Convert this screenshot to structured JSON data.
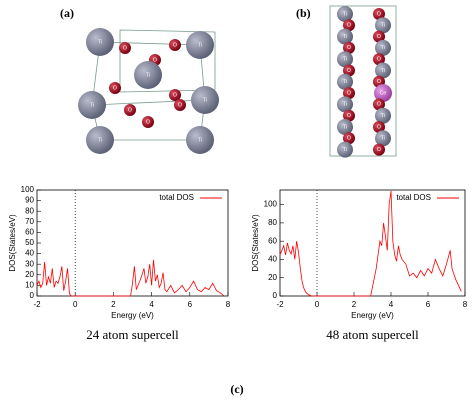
{
  "panels": [
    {
      "label": "(a)",
      "atoms": [
        "Ti",
        "O",
        "O",
        "Ti",
        "O",
        "Ti",
        "O",
        "O",
        "Ti",
        "O",
        "O",
        "Ti",
        "Ti",
        "O",
        "Ti"
      ]
    },
    {
      "label": "(b)",
      "atoms": [
        "Ti",
        "O",
        "O",
        "Ti",
        "Ti",
        "O",
        "O",
        "Ti",
        "Ti",
        "O",
        "O",
        "Ti",
        "Ti",
        "O",
        "O",
        "Ce",
        "Ti",
        "O",
        "O",
        "Ti",
        "Ti",
        "O",
        "O",
        "Ti",
        "Ti",
        "O"
      ]
    }
  ],
  "figure_label": "(c)",
  "chart_data": [
    {
      "type": "line",
      "caption": "24 atom supercell",
      "xlabel": "Energy (eV)",
      "ylabel": "DOS(States/eV)",
      "xlim": [
        -2,
        8
      ],
      "ylim": [
        0,
        100
      ],
      "xticks": [
        -2,
        0,
        2,
        4,
        6,
        8
      ],
      "yticks": [
        0,
        10,
        20,
        30,
        40,
        50,
        60,
        70,
        80,
        90,
        100
      ],
      "vline": 0,
      "legend": "upper right",
      "x": [
        -2,
        -1.9,
        -1.8,
        -1.7,
        -1.6,
        -1.5,
        -1.4,
        -1.3,
        -1.2,
        -1.1,
        -1.0,
        -0.9,
        -0.8,
        -0.7,
        -0.6,
        -0.5,
        -0.4,
        -0.3,
        -0.2,
        0,
        1,
        2,
        2.9,
        3.0,
        3.1,
        3.2,
        3.4,
        3.5,
        3.6,
        3.7,
        3.8,
        3.9,
        4.0,
        4.1,
        4.2,
        4.3,
        4.4,
        4.5,
        4.6,
        4.7,
        4.8,
        5.0,
        5.2,
        5.4,
        5.6,
        5.8,
        6.0,
        6.2,
        6.4,
        6.6,
        6.8,
        7.0,
        7.2,
        7.4,
        7.6,
        7.8
      ],
      "series": [
        {
          "name": "total DOS",
          "color": "#ff0000",
          "values": [
            10,
            14,
            8,
            12,
            32,
            10,
            18,
            12,
            26,
            8,
            14,
            12,
            18,
            28,
            5,
            14,
            26,
            2,
            0,
            0,
            0,
            0,
            0,
            12,
            28,
            6,
            15,
            20,
            26,
            12,
            18,
            30,
            10,
            34,
            14,
            20,
            8,
            12,
            22,
            6,
            4,
            10,
            3,
            6,
            10,
            4,
            8,
            14,
            6,
            4,
            8,
            6,
            12,
            5,
            3,
            0
          ]
        }
      ]
    },
    {
      "type": "line",
      "caption": "48 atom supercell",
      "xlabel": "Energy (eV)",
      "ylabel": "DOS(States/eV)",
      "xlim": [
        -2,
        8
      ],
      "ylim": [
        0,
        116
      ],
      "xticks": [
        -2,
        0,
        2,
        4,
        6,
        8
      ],
      "yticks": [
        0,
        20,
        40,
        60,
        80,
        100
      ],
      "vline": 0,
      "legend": "upper right",
      "x": [
        -2,
        -1.9,
        -1.8,
        -1.7,
        -1.6,
        -1.5,
        -1.4,
        -1.3,
        -1.2,
        -1.1,
        -1.0,
        -0.9,
        -0.8,
        -0.7,
        -0.6,
        -0.5,
        -0.3,
        0,
        1,
        2,
        2.9,
        3.0,
        3.2,
        3.3,
        3.4,
        3.5,
        3.6,
        3.7,
        3.8,
        3.9,
        4.0,
        4.1,
        4.2,
        4.3,
        4.4,
        4.5,
        4.6,
        4.8,
        5.0,
        5.2,
        5.4,
        5.6,
        5.8,
        6.0,
        6.2,
        6.4,
        6.6,
        6.8,
        7.0,
        7.2,
        7.3,
        7.5,
        7.8
      ],
      "series": [
        {
          "name": "total DOS",
          "color": "#ff0000",
          "values": [
            45,
            50,
            55,
            45,
            58,
            50,
            46,
            55,
            40,
            60,
            48,
            30,
            15,
            8,
            4,
            2,
            0,
            0,
            0,
            0,
            0,
            10,
            30,
            45,
            60,
            55,
            80,
            65,
            50,
            100,
            115,
            60,
            45,
            38,
            55,
            45,
            40,
            35,
            22,
            25,
            20,
            28,
            22,
            30,
            25,
            40,
            30,
            22,
            35,
            50,
            30,
            18,
            5
          ]
        }
      ]
    }
  ]
}
